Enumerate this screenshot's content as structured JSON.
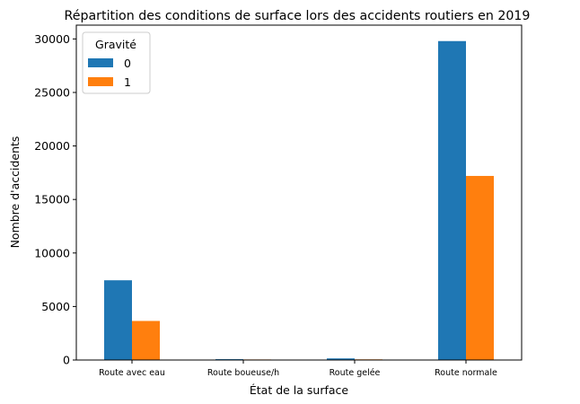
{
  "chart_data": {
    "type": "bar",
    "title": "Répartition des conditions de surface lors des accidents routiers en 2019",
    "xlabel": "État de la surface",
    "ylabel": "Nombre d'accidents",
    "categories": [
      "Route avec eau",
      "Route boueuse/h",
      "Route gelée",
      "Route normale"
    ],
    "series": [
      {
        "name": "0",
        "values": [
          7450,
          80,
          150,
          29800
        ],
        "color": "#1f77b4"
      },
      {
        "name": "1",
        "values": [
          3650,
          50,
          60,
          17200
        ],
        "color": "#ff7f0e"
      }
    ],
    "yticks": [
      0,
      5000,
      10000,
      15000,
      20000,
      25000,
      30000
    ],
    "ylim": [
      0,
      31290
    ],
    "legend": {
      "title": "Gravité",
      "placement": "top-left"
    },
    "grid": false
  }
}
